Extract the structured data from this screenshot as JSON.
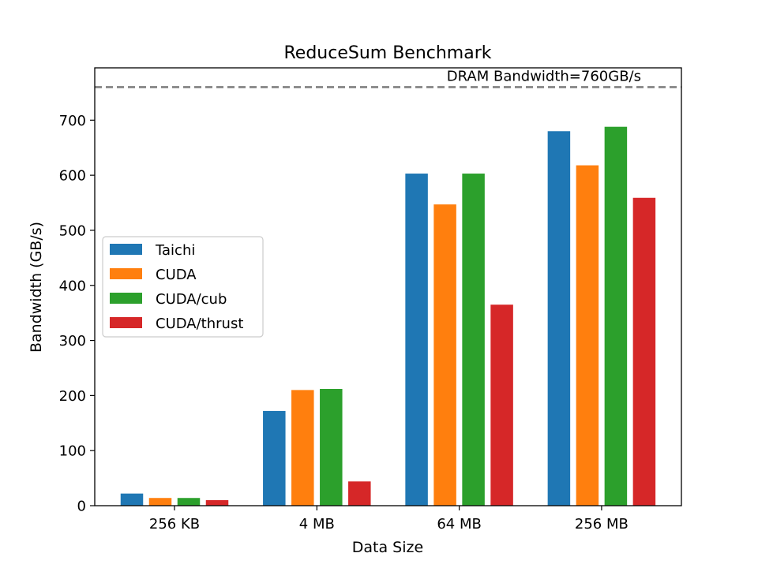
{
  "chart_data": {
    "type": "bar",
    "title": "ReduceSum Benchmark",
    "xlabel": "Data Size",
    "ylabel": "Bandwidth (GB/s)",
    "categories": [
      "256 KB",
      "4 MB",
      "64 MB",
      "256 MB"
    ],
    "series": [
      {
        "name": "Taichi",
        "color": "#1f77b4",
        "values": [
          22,
          172,
          603,
          680
        ]
      },
      {
        "name": "CUDA",
        "color": "#ff7f0e",
        "values": [
          14,
          210,
          547,
          618
        ]
      },
      {
        "name": "CUDA/cub",
        "color": "#2ca02c",
        "values": [
          14,
          212,
          603,
          688
        ]
      },
      {
        "name": "CUDA/thrust",
        "color": "#d62728",
        "values": [
          10,
          44,
          365,
          559
        ]
      }
    ],
    "ylim": [
      0,
      795
    ],
    "yticks": [
      0,
      100,
      200,
      300,
      400,
      500,
      600,
      700
    ],
    "reference_line": {
      "value": 760,
      "label": "DRAM Bandwidth=760GB/s",
      "color": "#808080",
      "style": "dashed"
    },
    "legend_position": "center-left",
    "grid": false
  }
}
